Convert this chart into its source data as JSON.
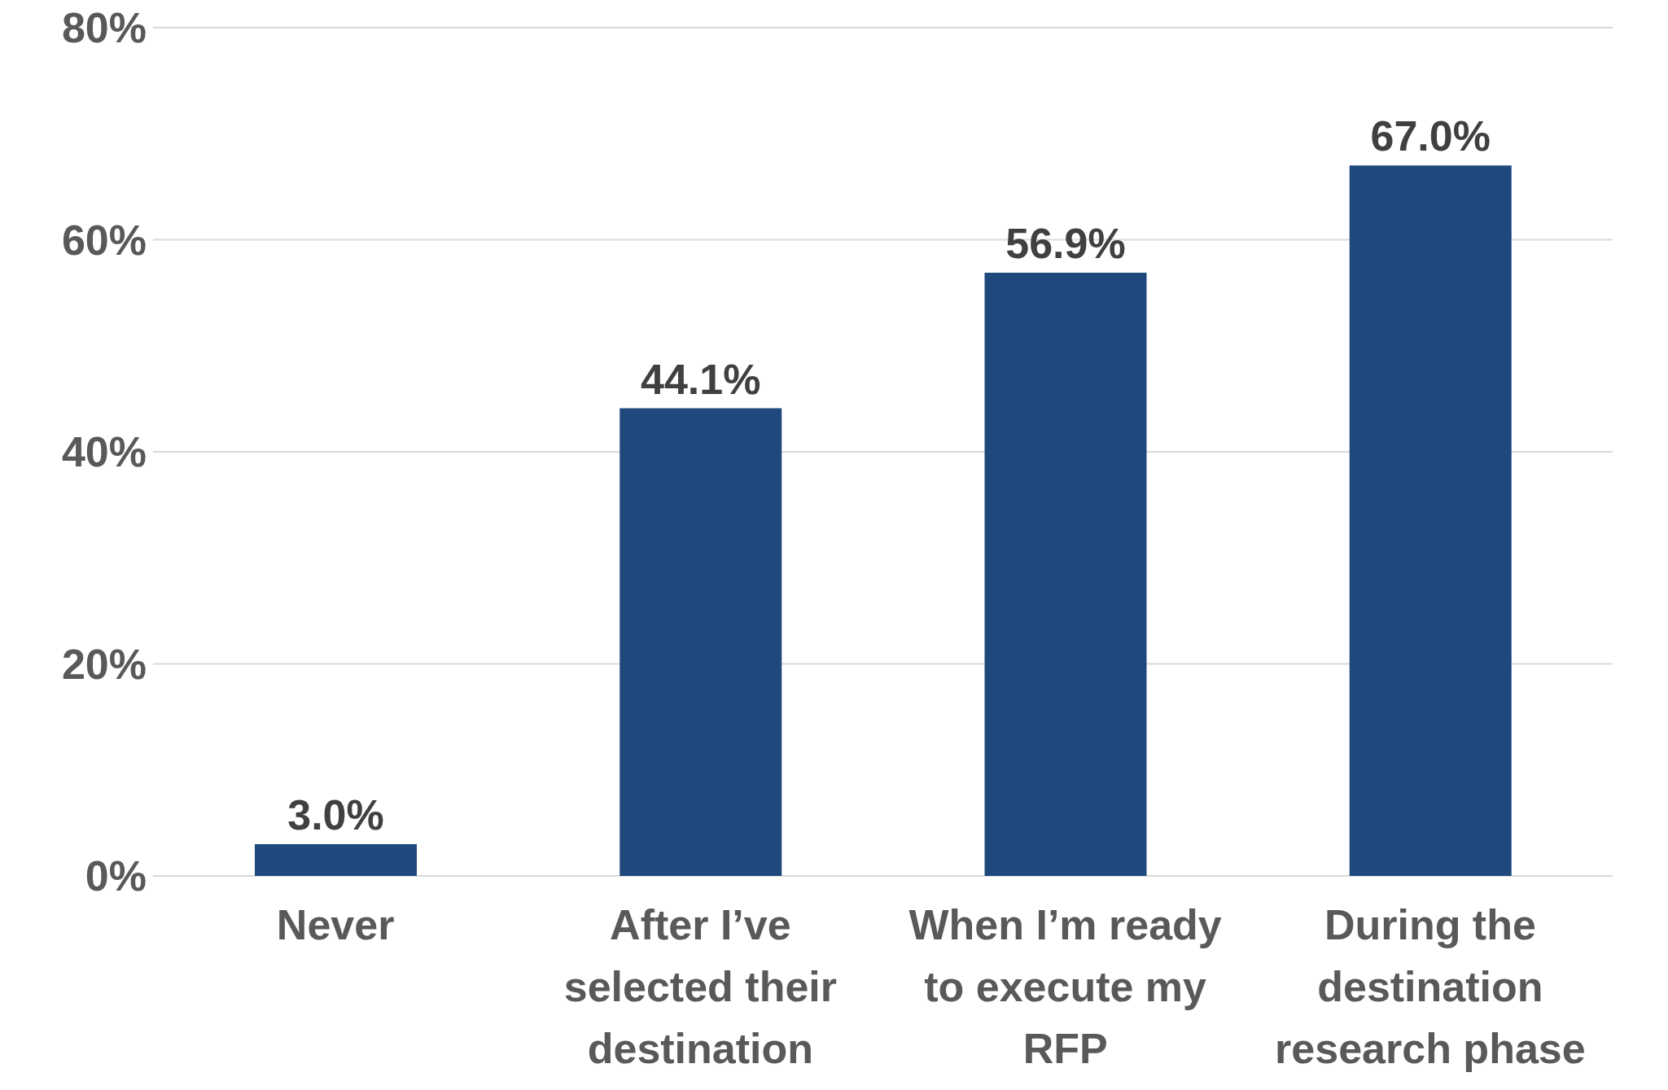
{
  "chart_data": {
    "type": "bar",
    "categories": [
      "Never",
      "After I’ve selected their destination",
      "When I’m ready to execute my RFP",
      "During the destination research phase"
    ],
    "values": [
      3.0,
      44.1,
      56.9,
      67.0
    ],
    "value_labels": [
      "3.0%",
      "44.1%",
      "56.9%",
      "67.0%"
    ],
    "color": "#1f497d",
    "ylim": [
      0,
      80
    ],
    "yticks": [
      {
        "value": 0,
        "label": "0%"
      },
      {
        "value": 20,
        "label": "20%"
      },
      {
        "value": 40,
        "label": "40%"
      },
      {
        "value": 60,
        "label": "60%"
      },
      {
        "value": 80,
        "label": "80%"
      }
    ],
    "grid": "y"
  }
}
